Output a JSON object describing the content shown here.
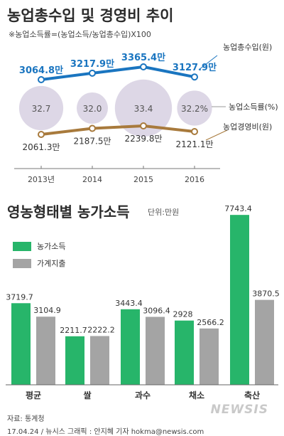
{
  "header": {
    "title": "농업총수입 및 경영비 추이",
    "formula": "※농업소득률=(농업소득/농업총수입)X100"
  },
  "chart_data": [
    {
      "type": "line",
      "title": "농업총수입 및 경영비 추이",
      "categories": [
        "2013년",
        "2014",
        "2015",
        "2016"
      ],
      "series": [
        {
          "name": "농업총수입(원)",
          "values": [
            3064.8,
            3217.9,
            3365.4,
            3127.9
          ],
          "labels": [
            "3064.8만",
            "3217.9만",
            "3365.4만",
            "3127.9만"
          ],
          "color": "#1a75c0"
        },
        {
          "name": "농업경영비(원)",
          "values": [
            2061.3,
            2187.5,
            2239.8,
            2121.1
          ],
          "labels": [
            "2061.3만",
            "2187.5만",
            "2239.8만",
            "2121.1만"
          ],
          "color": "#a87a3c"
        },
        {
          "name": "농업소득률(%)",
          "values": [
            32.7,
            32.0,
            33.4,
            32.2
          ],
          "labels": [
            "32.7",
            "32.0",
            "33.4",
            "32.2%"
          ],
          "color": "#d9d3e3"
        }
      ],
      "grid": false
    },
    {
      "type": "bar",
      "title": "영농형태별 농가소득",
      "unit": "단위:만원",
      "categories": [
        "평균",
        "쌀",
        "과수",
        "채소",
        "축산"
      ],
      "series": [
        {
          "name": "농가소득",
          "values": [
            3719.7,
            2211.7,
            3443.4,
            2928,
            7743.4
          ],
          "color": "#27b56a"
        },
        {
          "name": "가계지출",
          "values": [
            3104.9,
            2222.2,
            3096.4,
            2566.2,
            3870.5
          ],
          "color": "#a4a4a4"
        }
      ],
      "ylim": [
        0,
        8300
      ],
      "legend": "top-left"
    }
  ],
  "footer": {
    "source": "자료: 통계청",
    "credit": "17.04.24 / 뉴시스 그래픽 : 안지혜 기자 hokma@newsis.com",
    "watermark": "NEWSIS"
  }
}
